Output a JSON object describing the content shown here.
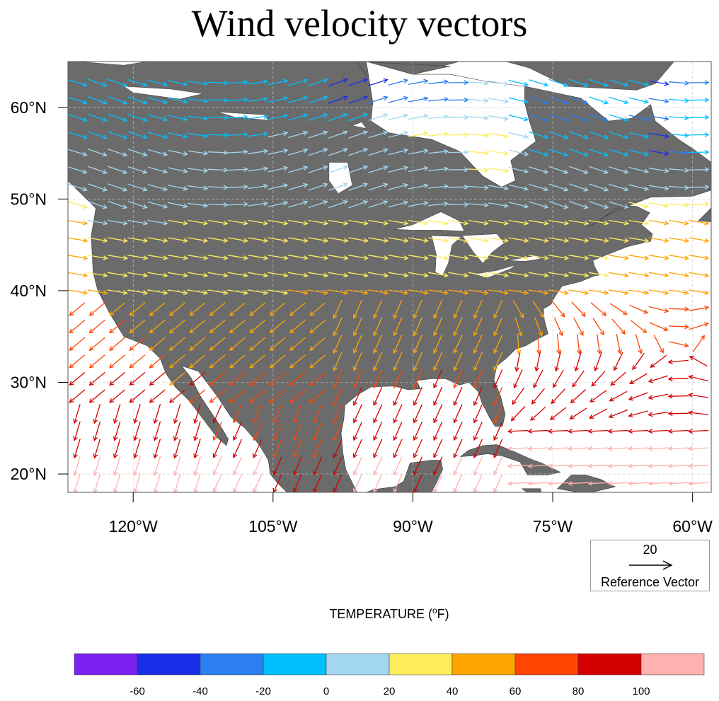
{
  "title": "Wind velocity vectors",
  "map": {
    "lon_range": [
      -127,
      -58
    ],
    "lat_range": [
      18,
      65
    ],
    "lon_ticks": [
      {
        "value": -120,
        "label": "120°W"
      },
      {
        "value": -105,
        "label": "105°W"
      },
      {
        "value": -90,
        "label": "90°W"
      },
      {
        "value": -75,
        "label": "75°W"
      },
      {
        "value": -60,
        "label": "60°W"
      }
    ],
    "lat_ticks": [
      {
        "value": 20,
        "label": "20°N"
      },
      {
        "value": 30,
        "label": "30°N"
      },
      {
        "value": 40,
        "label": "40°N"
      },
      {
        "value": 50,
        "label": "50°N"
      },
      {
        "value": 60,
        "label": "60°N"
      }
    ],
    "land_color": "#6b6b6b",
    "water_color": "#ffffff"
  },
  "reference_vector": {
    "magnitude": "20",
    "label": "Reference Vector"
  },
  "colorbar": {
    "title": "TEMPERATURE (",
    "title_sup": "o",
    "title_end": "F)",
    "colors": [
      "#7b22f0",
      "#1a2de8",
      "#2b7ff0",
      "#00bfff",
      "#a3d6f0",
      "#ffec5c",
      "#ffa500",
      "#ff4500",
      "#d40000",
      "#ffb0b0"
    ],
    "labels": [
      "-60",
      "-40",
      "-20",
      "0",
      "20",
      "40",
      "60",
      "80",
      "100"
    ]
  }
}
